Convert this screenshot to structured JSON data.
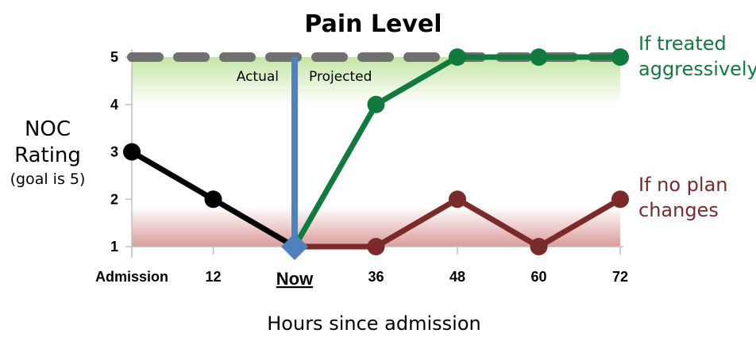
{
  "chart_data": {
    "type": "line",
    "title": "Pain Level",
    "ylabel_lines": [
      "NOC",
      "Rating",
      "(goal is 5)"
    ],
    "xlabel": "Hours since admission",
    "x_categories": [
      "Admission",
      "12",
      "Now",
      "36",
      "48",
      "60",
      "72"
    ],
    "y_ticks": [
      "1",
      "2",
      "3",
      "4",
      "5"
    ],
    "ylim": [
      1,
      5
    ],
    "goal": 5,
    "now_index": 2,
    "region_labels": {
      "left": "Actual",
      "right": "Projected"
    },
    "series": [
      {
        "key": "actual",
        "color": "#000000",
        "x_index": [
          0,
          1,
          2
        ],
        "values": [
          3,
          2,
          1
        ]
      },
      {
        "key": "aggressive",
        "color": "#117a3e",
        "annotation": [
          "If treated",
          "aggressively"
        ],
        "x_index": [
          2,
          3,
          4,
          5,
          6
        ],
        "values": [
          1,
          4,
          5,
          5,
          5
        ]
      },
      {
        "key": "no_change",
        "color": "#7b2a2a",
        "annotation": [
          "If no plan",
          "changes"
        ],
        "x_index": [
          2,
          3,
          4,
          5,
          6
        ],
        "values": [
          1,
          1,
          2,
          1,
          2
        ]
      }
    ],
    "colors": {
      "goal_line": "#707070",
      "now_line": "#4f81bd",
      "now_marker": "#4f81bd",
      "good_band": "#c4e5a6",
      "bad_band": "#dc9c9c",
      "axis": "#bfbfbf"
    }
  }
}
